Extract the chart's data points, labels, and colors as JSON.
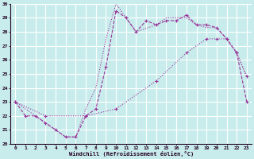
{
  "xlabel": "Windchill (Refroidissement éolien,°C)",
  "bg_color": "#c8ecec",
  "line_color": "#993399",
  "grid_color": "#ffffff",
  "xlim": [
    -0.5,
    23.5
  ],
  "ylim": [
    20,
    30
  ],
  "xticks": [
    0,
    1,
    2,
    3,
    4,
    5,
    6,
    7,
    8,
    9,
    10,
    11,
    12,
    13,
    14,
    15,
    16,
    17,
    18,
    19,
    20,
    21,
    22,
    23
  ],
  "yticks": [
    20,
    21,
    22,
    23,
    24,
    25,
    26,
    27,
    28,
    29,
    30
  ],
  "series1_x": [
    0,
    1,
    2,
    3,
    4,
    5,
    6,
    7,
    8,
    9,
    10,
    11,
    12,
    13,
    14,
    15,
    16,
    17,
    18,
    19,
    20,
    21,
    22,
    23
  ],
  "series1_y": [
    23.0,
    22.0,
    22.0,
    21.5,
    21.0,
    20.5,
    20.5,
    22.0,
    22.5,
    25.5,
    29.5,
    29.0,
    28.0,
    28.8,
    28.5,
    28.8,
    28.8,
    29.2,
    28.5,
    28.5,
    28.3,
    27.5,
    26.5,
    23.0
  ],
  "series2_x": [
    0,
    2,
    3,
    4,
    5,
    6,
    7,
    8,
    9,
    10,
    12,
    14,
    15,
    17,
    18,
    19,
    20,
    21,
    22,
    23
  ],
  "series2_y": [
    23.0,
    22.0,
    21.5,
    21.0,
    20.5,
    20.5,
    22.5,
    24.0,
    27.5,
    30.0,
    28.0,
    28.5,
    29.0,
    29.0,
    28.5,
    28.3,
    28.3,
    27.5,
    26.5,
    24.8
  ],
  "series3_x": [
    0,
    3,
    7,
    10,
    14,
    17,
    19,
    20,
    21,
    22,
    23
  ],
  "series3_y": [
    23.0,
    22.0,
    22.0,
    22.5,
    24.5,
    26.5,
    27.5,
    27.5,
    27.5,
    26.5,
    24.8
  ]
}
